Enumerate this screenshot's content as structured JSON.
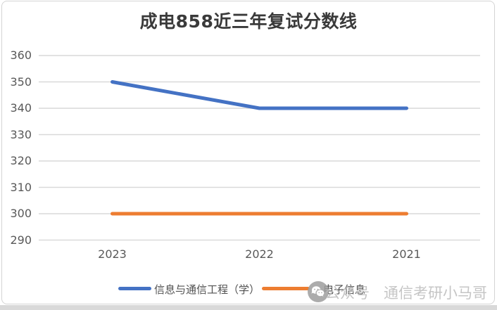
{
  "chart_data": {
    "type": "line",
    "title": "成电858近三年复试分数线",
    "categories": [
      "2023",
      "2022",
      "2021"
    ],
    "series": [
      {
        "name": "信息与通信工程（学）",
        "color": "#4472C4",
        "values": [
          350,
          340,
          340
        ]
      },
      {
        "name": "电子信息",
        "color": "#ED7D31",
        "values": [
          300,
          300,
          300
        ]
      }
    ],
    "ylim": [
      290,
      360
    ],
    "ytick_step": 10,
    "grid": "horizontal-only",
    "grid_color": "#d9d9d9",
    "axis_text_color": "#595959",
    "legend_position": "bottom"
  },
  "watermark": {
    "icon": "wechat-official-account-icon",
    "prefix": "公众号",
    "separator": "·",
    "name": "通信考研小马哥"
  }
}
